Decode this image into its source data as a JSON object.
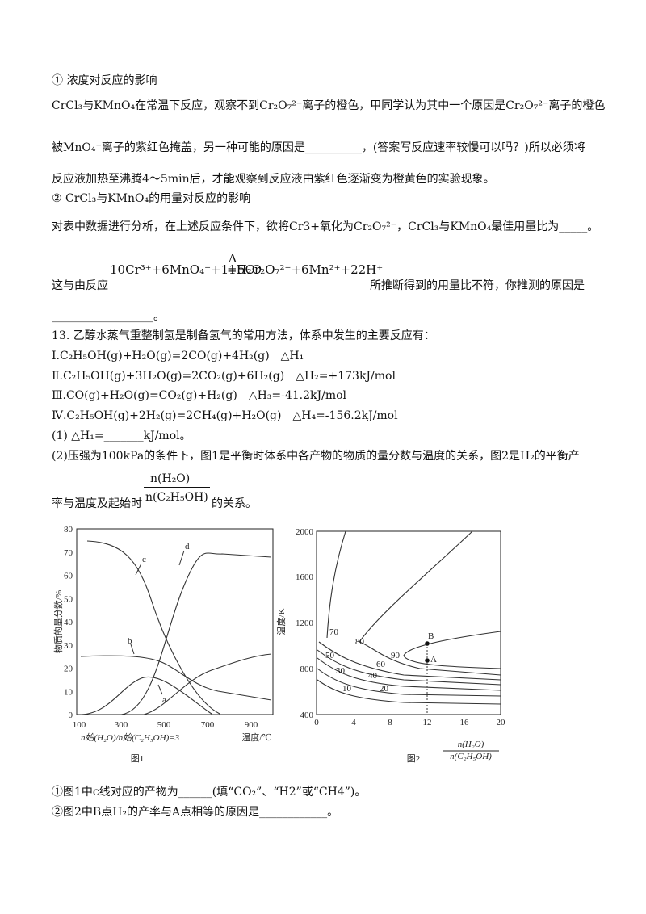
{
  "section1": {
    "heading1": "① 浓度对反应的影响",
    "line1": "CrCl₃与KMnO₄在常温下反应，观察不到Cr₂O₇²⁻离子的橙色，甲同学认为其中一个原因是Cr₂O₇²⁻离子的橙色",
    "line2": "被MnO₄⁻离子的紫红色掩盖，另一种可能的原因是__________，(答案写反应速率较慢可以吗？)所以必须将",
    "line3": "反应液加热至沸腾4～5min后，才能观察到反应液由紫红色逐渐变为橙黄色的实验现象。",
    "heading2": "② CrCl₃与KMnO₄的用量对反应的影响",
    "line4": "对表中数据进行分析，在上述反应条件下，欲将Cr3+氧化为Cr₂O₇²⁻，CrCl₃与KMnO₄最佳用量比为_____。",
    "equation": {
      "left": "10Cr³⁺+6MnO₄⁻+11H₂O",
      "condition": "Δ",
      "right": "5Cr₂O₇²⁻+6Mn²⁺+22H⁺"
    },
    "line5_before": "这与由反应",
    "line5_after": "所推断得到的用量比不符，你推测的原因是",
    "line6": "__________________。"
  },
  "q13": {
    "stem": "13. 乙醇水蒸气重整制氢是制备氢气的常用方法，体系中发生的主要反应有：",
    "reactions": [
      "Ⅰ.C₂H₅OH(g)+H₂O(g)=2CO(g)+4H₂(g)　△H₁",
      "Ⅱ.C₂H₅OH(g)+3H₂O(g)=2CO₂(g)+6H₂(g)　△H₂=+173kJ/mol",
      "Ⅲ.CO(g)+H₂O(g)=CO₂(g)+H₂(g)　△H₃=-41.2kJ/mol",
      "Ⅳ.C₂H₅OH(g)+2H₂(g)=2CH₄(g)+H₂O(g)　△H₄=-156.2kJ/mol"
    ],
    "part1": "(1) △H₁=_______kJ/mol。",
    "part2": "(2)压强为100kPa的条件下，图1是平衡时体系中各产物的物质的量分数与温度的关系，图2是H₂的平衡产",
    "part2_line2": "率与温度及起始时",
    "part2_end": "的关系。",
    "fraction": {
      "numerator": "n(H₂O)",
      "denominator": "n(C₂H₅OH)"
    },
    "questions": [
      "①图1中c线对应的产物为______(填“CO₂”、“H2”或“CH4”)。",
      "②图2中B点H₂的产率与A点相等的原因是____________。"
    ]
  },
  "figure1": {
    "caption": "图1",
    "y_label": "物质的量分数/%",
    "x_label": "温度/℃",
    "condition": "n始(H₂O)/n始(C₂H₅OH)=3",
    "x_ticks": [
      "100",
      "300",
      "500",
      "700",
      "900"
    ],
    "y_ticks": [
      "0",
      "10",
      "20",
      "30",
      "40",
      "50",
      "60",
      "70",
      "80"
    ],
    "curve_labels": [
      "a",
      "b",
      "c",
      "d"
    ]
  },
  "figure2": {
    "caption": "图2",
    "y_label": "温度/K",
    "x_label": {
      "numerator": "n(H₂O)",
      "denominator": "n(C₂H₅OH)"
    },
    "x_ticks": [
      "0",
      "4",
      "8",
      "12",
      "16",
      "20"
    ],
    "y_ticks": [
      "400",
      "800",
      "1200",
      "1600",
      "2000"
    ],
    "contour_labels": [
      "10",
      "20",
      "30",
      "40",
      "50",
      "60",
      "70",
      "80",
      "90"
    ],
    "points": [
      "A",
      "B"
    ]
  }
}
